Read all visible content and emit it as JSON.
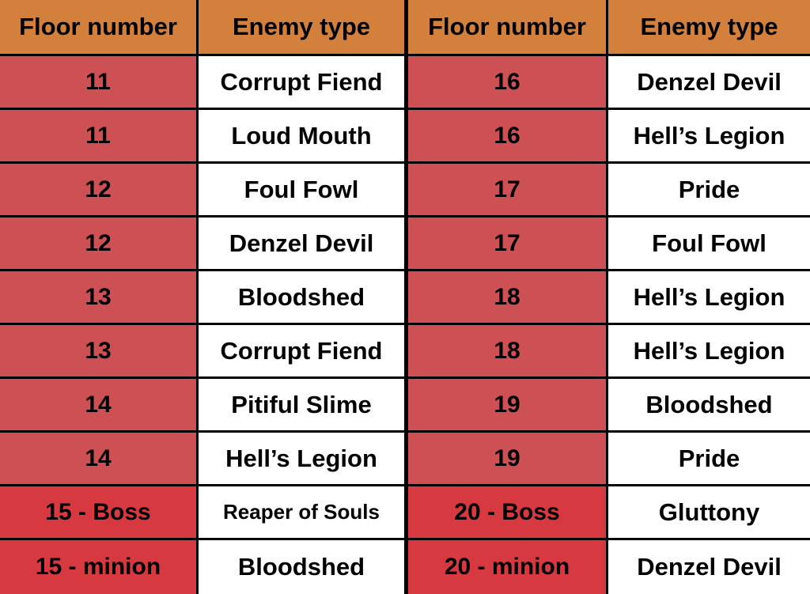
{
  "headers": [
    "Floor number",
    "Enemy type",
    "Floor number",
    "Enemy type"
  ],
  "left_rows": [
    {
      "floor": "11",
      "enemy": "Corrupt Fiend"
    },
    {
      "floor": "11",
      "enemy": "Loud Mouth"
    },
    {
      "floor": "12",
      "enemy": "Foul Fowl"
    },
    {
      "floor": "12",
      "enemy": "Denzel Devil"
    },
    {
      "floor": "13",
      "enemy": "Bloodshed"
    },
    {
      "floor": "13",
      "enemy": "Corrupt Fiend"
    },
    {
      "floor": "14",
      "enemy": "Pitiful Slime"
    },
    {
      "floor": "14",
      "enemy": "Hell’s Legion"
    },
    {
      "floor": "15 - Boss",
      "enemy": "Reaper of Souls"
    },
    {
      "floor": "15 - minion",
      "enemy": "Bloodshed"
    }
  ],
  "right_rows": [
    {
      "floor": "16",
      "enemy": "Denzel Devil"
    },
    {
      "floor": "16",
      "enemy": "Hell’s Legion"
    },
    {
      "floor": "17",
      "enemy": "Pride"
    },
    {
      "floor": "17",
      "enemy": "Foul Fowl"
    },
    {
      "floor": "18",
      "enemy": "Hell’s Legion"
    },
    {
      "floor": "18",
      "enemy": "Hell’s Legion"
    },
    {
      "floor": "19",
      "enemy": "Bloodshed"
    },
    {
      "floor": "19",
      "enemy": "Pride"
    },
    {
      "floor": "20 - Boss",
      "enemy": "Gluttony"
    },
    {
      "floor": "20 - minion",
      "enemy": "Denzel Devil"
    }
  ],
  "colors": {
    "header_bg": "#d3803d",
    "floor_bg": "#cd5154",
    "boss_floor_bg": "#d6393f",
    "enemy_bg": "#ffffff",
    "grid_lines": "#000000"
  }
}
